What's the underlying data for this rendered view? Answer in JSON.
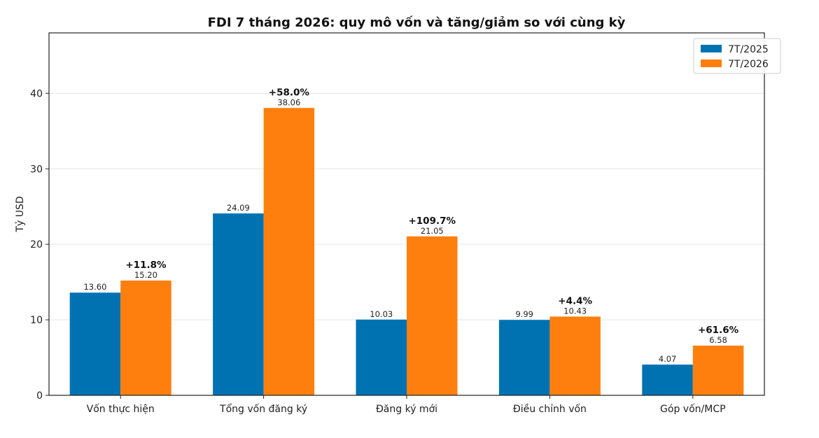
{
  "chart_data": {
    "type": "bar",
    "title": "FDI 7 tháng 2026: quy mô vốn và tăng/giảm so với cùng kỳ",
    "xlabel": "",
    "ylabel": "Tỷ USD",
    "ylim": [
      0,
      48
    ],
    "yticks": [
      0,
      10,
      20,
      30,
      40
    ],
    "grid": "horizontal",
    "legend_position": "top-right",
    "categories": [
      "Vốn thực hiện",
      "Tổng vốn đăng ký",
      "Đăng ký mới",
      "Điều chỉnh vốn",
      "Góp vốn/MCP"
    ],
    "series": [
      {
        "name": "7T/2025",
        "color": "#0072b2",
        "values": [
          13.6,
          24.09,
          10.03,
          9.99,
          4.07
        ]
      },
      {
        "name": "7T/2026",
        "color": "#ff7f0e",
        "values": [
          15.2,
          38.06,
          21.05,
          10.43,
          6.58
        ]
      }
    ],
    "value_labels": [
      [
        "13.60",
        "24.09",
        "10.03",
        "9.99",
        "4.07"
      ],
      [
        "15.20",
        "38.06",
        "21.05",
        "10.43",
        "6.58"
      ]
    ],
    "change_labels": [
      "+11.8%",
      "+58.0%",
      "+109.7%",
      "+4.4%",
      "+61.6%"
    ]
  }
}
